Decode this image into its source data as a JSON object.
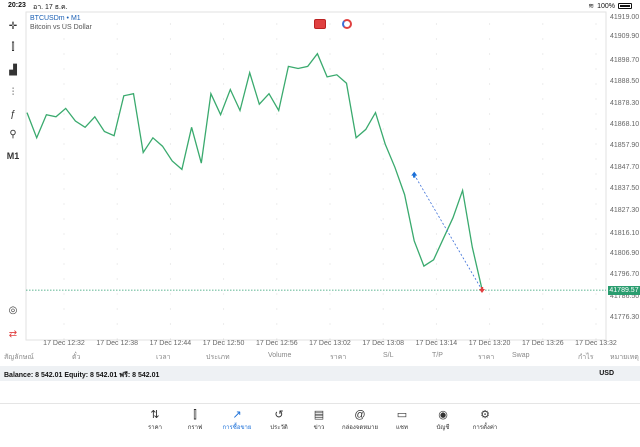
{
  "status": {
    "time": "20:23",
    "date": "อา. 17 ธ.ค.",
    "battery": "100%"
  },
  "symbol": {
    "name": "BTCUSDm • M1",
    "description": "Bitcoin vs US Dollar"
  },
  "toolbar": {
    "items": [
      {
        "name": "crosshair-icon",
        "glyph": "✛"
      },
      {
        "name": "chart-type-icon",
        "glyph": "⫿"
      },
      {
        "name": "indicators-icon",
        "glyph": "▟"
      },
      {
        "name": "settings-sliders-icon",
        "glyph": "⫶"
      },
      {
        "name": "function-icon",
        "glyph": "ƒ"
      },
      {
        "name": "objects-icon",
        "glyph": "⚲"
      },
      {
        "name": "timeframe-label",
        "glyph": "M1"
      }
    ],
    "bottom": [
      {
        "name": "zoom-icon",
        "glyph": "◎"
      },
      {
        "name": "trade-icon",
        "glyph": "⇄"
      }
    ]
  },
  "chart_data": {
    "type": "line",
    "title": "",
    "y_ticks": [
      "41919.00",
      "41909.90",
      "41898.70",
      "41888.50",
      "41878.30",
      "41868.10",
      "41857.90",
      "41847.70",
      "41837.50",
      "41827.30",
      "41816.10",
      "41806.90",
      "41796.70",
      "41786.50",
      "41776.30"
    ],
    "x_ticks": [
      "17 Dec 12:32",
      "17 Dec 12:38",
      "17 Dec 12:44",
      "17 Dec 12:50",
      "17 Dec 12:56",
      "17 Dec 13:02",
      "17 Dec 13:08",
      "17 Dec 13:14",
      "17 Dec 13:20",
      "17 Dec 13:26",
      "17 Dec 13:32"
    ],
    "ylim": [
      41776.3,
      41919.0
    ],
    "current_price": "41789.57",
    "current_price_value": 41789.57,
    "line_color": "#3aaa6e",
    "series": [
      {
        "values": [
          41874,
          41862,
          41873,
          41872,
          41876,
          41870,
          41867,
          41872,
          41865,
          41863,
          41882,
          41883,
          41855,
          41862,
          41858,
          41851,
          41847,
          41867,
          41850,
          41883,
          41873,
          41885,
          41875,
          41893,
          41878,
          41883,
          41875,
          41896,
          41895,
          41896,
          41902,
          41891,
          41892,
          41888,
          41862,
          41866,
          41874,
          41859,
          41848,
          41835,
          41813,
          41801,
          41804,
          41814,
          41824,
          41837,
          41810,
          41790
        ]
      }
    ],
    "trade_arrows": [
      {
        "type": "buy",
        "x_index": 40,
        "y": 41844.5,
        "color": "#1a6fd8"
      },
      {
        "type": "sell",
        "x_index": 47,
        "y": 41789.6,
        "color": "#e04040"
      }
    ]
  },
  "columns": [
    "สัญลักษณ์",
    "ตั๋ว",
    "เวลา",
    "ประเภท",
    "Volume",
    "ราคา",
    "S/L",
    "T/P",
    "ราคา",
    "Swap",
    "กำไร",
    "หมายเหตุ"
  ],
  "balance": {
    "text": "Balance: 8 542.01 Equity: 8 542.01 ฟรี: 8 542.01",
    "currency": "USD"
  },
  "tabs": [
    {
      "name": "tab-quotes",
      "label": "ราคา",
      "glyph": "⇅",
      "icon": "quotes-icon"
    },
    {
      "name": "tab-chart",
      "label": "กราฟ",
      "glyph": "⫿",
      "icon": "chart-icon"
    },
    {
      "name": "tab-trade",
      "label": "การซื้อขาย",
      "glyph": "↗",
      "icon": "trade-icon",
      "active": true
    },
    {
      "name": "tab-history",
      "label": "ประวัติ",
      "glyph": "↺",
      "icon": "history-icon"
    },
    {
      "name": "tab-news",
      "label": "ข่าว",
      "glyph": "▤",
      "icon": "news-icon"
    },
    {
      "name": "tab-mailbox",
      "label": "กล่องจดหมาย",
      "glyph": "@",
      "icon": "mail-icon"
    },
    {
      "name": "tab-chat",
      "label": "แชท",
      "glyph": "▭",
      "icon": "chat-icon"
    },
    {
      "name": "tab-account",
      "label": "บัญชี",
      "glyph": "◉",
      "icon": "account-icon"
    },
    {
      "name": "tab-settings",
      "label": "การตั้งค่า",
      "glyph": "⚙",
      "icon": "gear-icon"
    }
  ]
}
